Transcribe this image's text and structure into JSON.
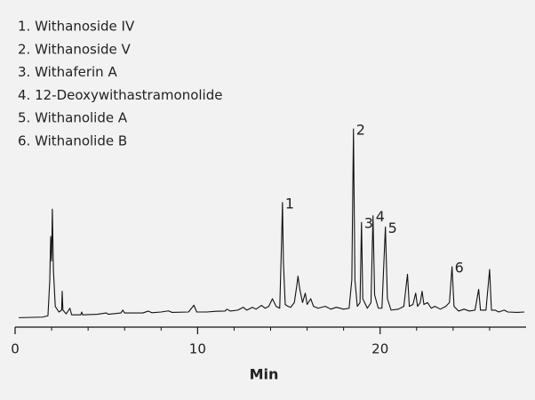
{
  "chart_data": {
    "type": "line",
    "compounds": [
      "1. Withanoside IV",
      "2. Withanoside V",
      "3. Withaferin A",
      "4. 12-Deoxywithastramonolide",
      "5. Withanolide A",
      "6. Withanolide B"
    ],
    "xlabel": "Min",
    "xlim": [
      0,
      28
    ],
    "xticks": [
      0,
      10,
      20
    ],
    "xminorticks": [
      2,
      4,
      6,
      8,
      12,
      14,
      16,
      18,
      22,
      24,
      26
    ],
    "ylim": [
      -5,
      100
    ],
    "grid": false,
    "series": [
      {
        "color": "#111111",
        "x": [
          0.2,
          1.5,
          1.8,
          1.9,
          1.95,
          2.0,
          2.04,
          2.1,
          2.2,
          2.4,
          2.55,
          2.58,
          2.62,
          2.8,
          3.0,
          3.1,
          3.6,
          3.65,
          3.7,
          4.5,
          5.0,
          5.1,
          5.8,
          5.9,
          6.0,
          7.0,
          7.3,
          7.5,
          8.0,
          8.4,
          8.6,
          9.5,
          9.8,
          9.95,
          10.5,
          11.0,
          11.5,
          11.6,
          11.8,
          12.2,
          12.5,
          12.7,
          13.0,
          13.2,
          13.5,
          13.7,
          13.9,
          14.1,
          14.3,
          14.5,
          14.6,
          14.65,
          14.7,
          14.8,
          14.95,
          15.1,
          15.3,
          15.45,
          15.5,
          15.6,
          15.75,
          15.9,
          16.0,
          16.2,
          16.35,
          16.6,
          17.0,
          17.3,
          17.6,
          18.0,
          18.3,
          18.45,
          18.54,
          18.62,
          18.75,
          18.9,
          18.98,
          19.05,
          19.3,
          19.5,
          19.61,
          19.7,
          19.9,
          20.1,
          20.29,
          20.4,
          20.6,
          21.0,
          21.3,
          21.5,
          21.6,
          21.8,
          21.95,
          22.05,
          22.2,
          22.3,
          22.4,
          22.6,
          22.8,
          23.0,
          23.3,
          23.6,
          23.8,
          23.94,
          24.05,
          24.3,
          24.6,
          24.9,
          25.2,
          25.4,
          25.5,
          25.8,
          26.0,
          26.1,
          26.3,
          26.5,
          26.8,
          27.0,
          27.5,
          27.9
        ],
        "values": [
          0,
          0.3,
          1,
          20,
          43,
          30,
          57.5,
          25,
          6,
          3,
          4,
          14,
          4,
          2,
          5,
          1.5,
          1.5,
          3,
          1.5,
          1.8,
          2.5,
          1.8,
          2.5,
          4,
          2.5,
          2.5,
          3.5,
          2.6,
          3,
          3.6,
          2.8,
          3,
          6.6,
          3,
          3,
          3.4,
          3.5,
          4.5,
          3.5,
          4,
          5.5,
          4,
          5.5,
          4.5,
          6.5,
          5,
          6,
          10,
          6,
          5,
          40,
          61,
          30,
          7,
          6,
          5.5,
          8,
          18,
          22,
          15,
          8,
          13,
          7,
          10,
          6,
          5,
          6,
          4.5,
          5.5,
          4.5,
          5,
          20,
          100,
          20,
          6,
          8,
          50.5,
          10,
          5,
          8,
          54,
          12,
          5,
          5,
          48,
          10,
          4,
          4.5,
          6,
          23,
          6,
          7,
          13,
          6,
          8,
          14,
          7,
          8,
          5,
          6,
          4.5,
          6,
          8,
          27,
          6,
          3.5,
          4.5,
          3.5,
          4,
          15,
          4,
          4,
          25.5,
          4,
          4,
          3,
          4,
          3,
          2.8,
          3
        ]
      }
    ],
    "annotations": [
      {
        "text": "1",
        "x": 14.65,
        "y": 61
      },
      {
        "text": "2",
        "x": 18.54,
        "y": 100
      },
      {
        "text": "3",
        "x": 18.98,
        "y": 50.5
      },
      {
        "text": "4",
        "x": 19.61,
        "y": 54
      },
      {
        "text": "5",
        "x": 20.29,
        "y": 48
      },
      {
        "text": "6",
        "x": 23.94,
        "y": 27
      }
    ]
  }
}
